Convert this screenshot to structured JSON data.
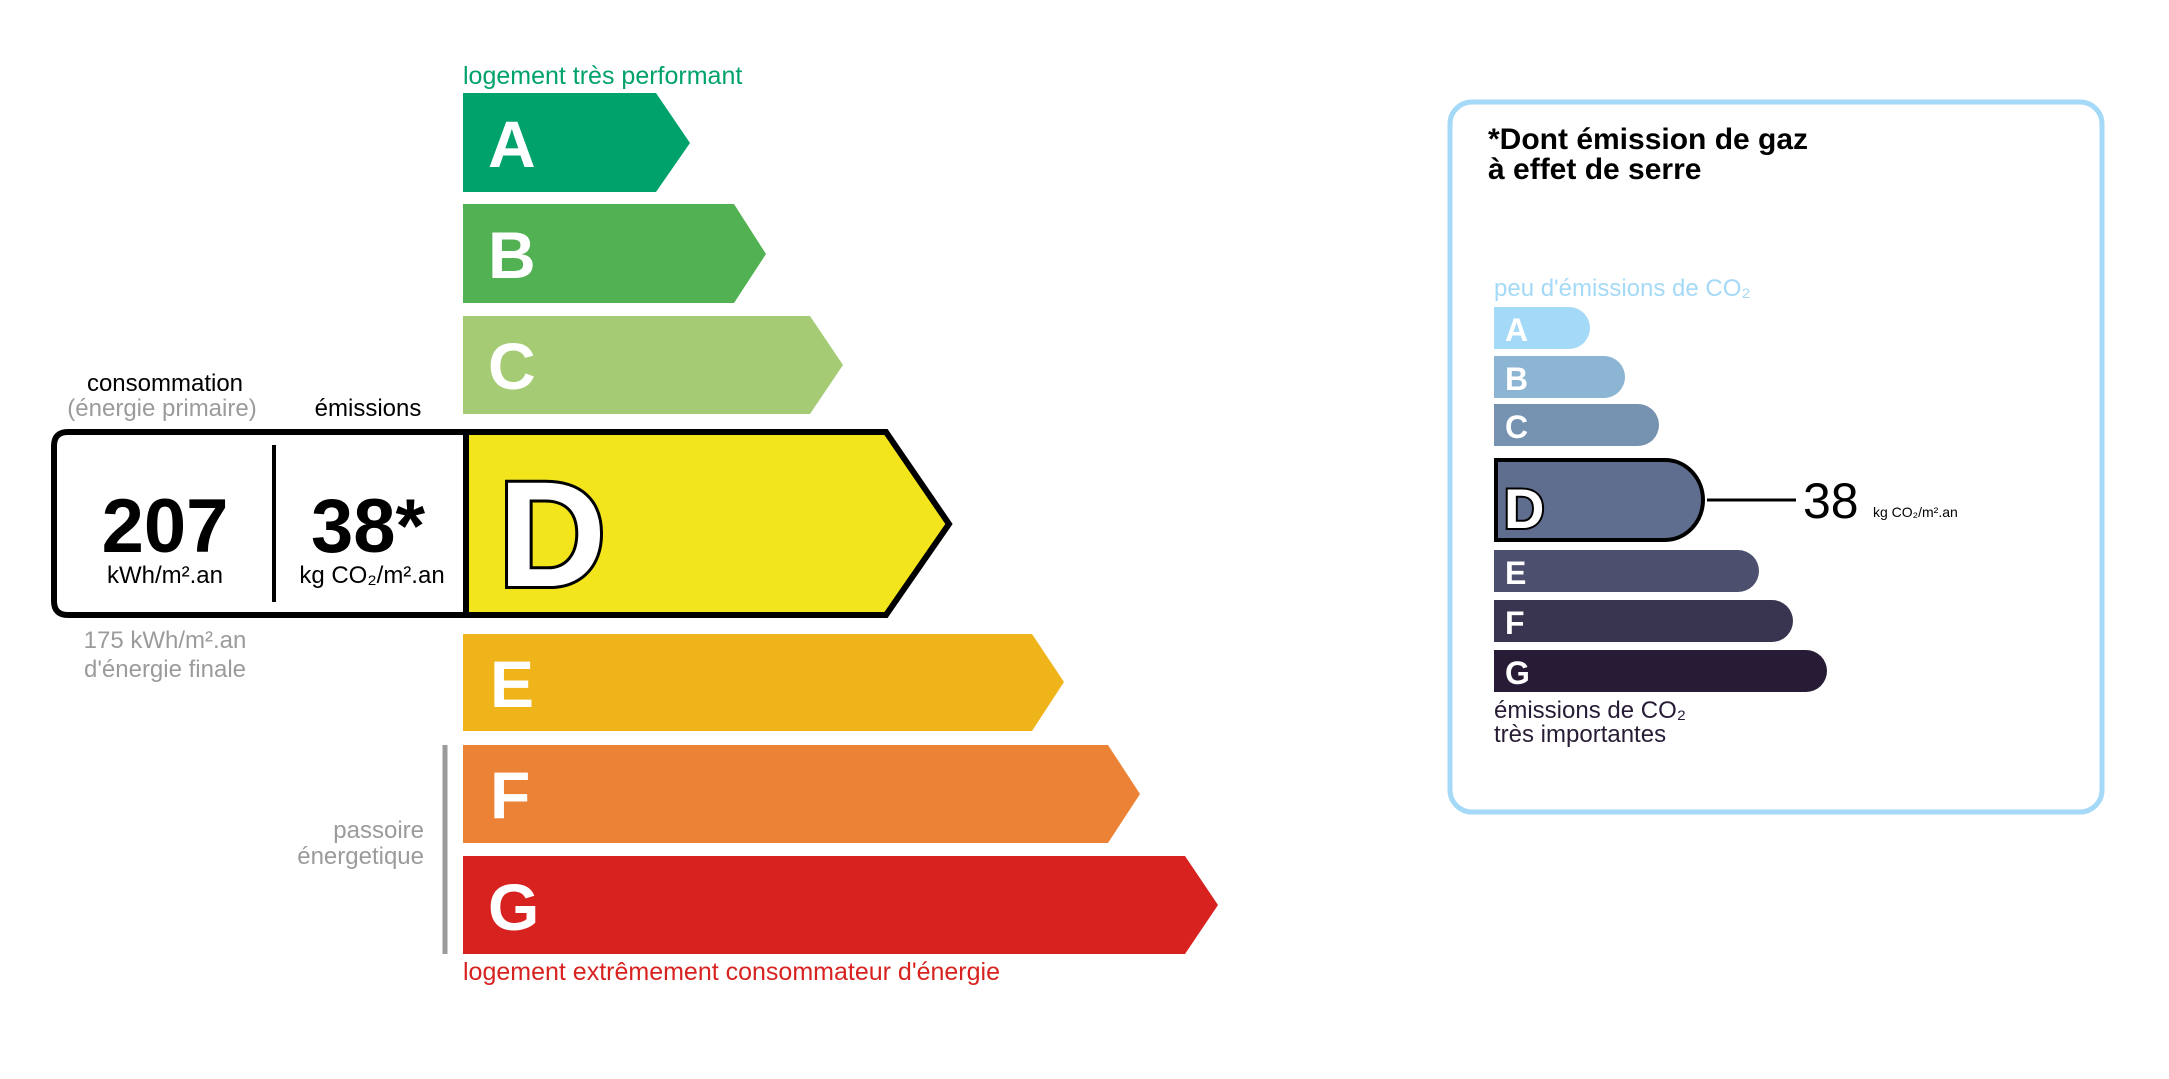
{
  "energy_scale": {
    "top_label": "logement très performant",
    "bottom_label": "logement extrêmement consommateur d'énergie",
    "grades": [
      {
        "letter": "A",
        "color": "#00a26b"
      },
      {
        "letter": "B",
        "color": "#52b153"
      },
      {
        "letter": "C",
        "color": "#a5cc74"
      },
      {
        "letter": "D",
        "color": "#f2e51c"
      },
      {
        "letter": "E",
        "color": "#f0b41b"
      },
      {
        "letter": "F",
        "color": "#eb8235"
      },
      {
        "letter": "G",
        "color": "#d7221f"
      }
    ],
    "current_grade": "D",
    "passoire_label_1": "passoire",
    "passoire_label_2": "énergetique",
    "top_label_color": "#00a26b",
    "bottom_label_color": "#d7221f"
  },
  "result": {
    "consumption_header": "consommation",
    "consumption_subheader": "(énergie primaire)",
    "emissions_header": "émissions",
    "consumption_value": "207",
    "consumption_unit": "kWh/m².an",
    "emissions_value": "38*",
    "emissions_unit": "kg CO₂/m².an",
    "final_energy_line1": "175 kWh/m².an",
    "final_energy_line2": "d'énergie finale"
  },
  "ghg_panel": {
    "title_line1": "*Dont émission de gaz",
    "title_line2": "à effet de serre",
    "top_label": "peu d'émissions de CO₂",
    "bottom_label_line1": "émissions de CO₂",
    "bottom_label_line2": "très importantes",
    "grades": [
      {
        "letter": "A",
        "color": "#a4d9f7"
      },
      {
        "letter": "B",
        "color": "#8cb4d3"
      },
      {
        "letter": "C",
        "color": "#7692b1"
      },
      {
        "letter": "D",
        "color": "#5f6e8e"
      },
      {
        "letter": "E",
        "color": "#4c4f6e"
      },
      {
        "letter": "F",
        "color": "#393551"
      },
      {
        "letter": "G",
        "color": "#281b35"
      }
    ],
    "current_grade": "D",
    "value": "38",
    "unit": "kg CO₂/m².an",
    "border_color": "#a4d9f7"
  }
}
